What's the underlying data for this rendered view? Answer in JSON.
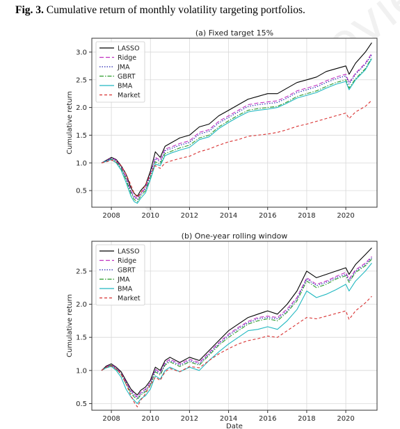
{
  "caption": {
    "label": "Fig. 3.",
    "text": "Cumulative return of monthly volatility targeting portfolios."
  },
  "watermark": "not peer reviewed",
  "chart_data": [
    {
      "type": "line",
      "title": "(a) Fixed target 15%",
      "xlabel": "",
      "ylabel": "Cumulative return",
      "xlim": [
        2007.0,
        2021.6
      ],
      "ylim": [
        0.2,
        3.25
      ],
      "xticks": [
        2008,
        2010,
        2012,
        2014,
        2016,
        2018,
        2020
      ],
      "yticks": [
        0.5,
        1.0,
        1.5,
        2.0,
        2.5,
        3.0
      ],
      "ytick_labels": [
        "0.5",
        "1.0",
        "1.5",
        "2.0",
        "2.5",
        "3.0"
      ],
      "grid": true,
      "legend_position": "top-left",
      "x": [
        2007.5,
        2007.75,
        2008.0,
        2008.25,
        2008.5,
        2008.75,
        2009.0,
        2009.17,
        2009.33,
        2009.5,
        2009.75,
        2010.0,
        2010.25,
        2010.5,
        2010.75,
        2011.0,
        2011.5,
        2012.0,
        2012.5,
        2013.0,
        2013.5,
        2014.0,
        2014.5,
        2015.0,
        2015.5,
        2016.0,
        2016.5,
        2017.0,
        2017.5,
        2018.0,
        2018.5,
        2019.0,
        2019.5,
        2020.0,
        2020.17,
        2020.5,
        2021.0,
        2021.33
      ],
      "series": [
        {
          "name": "LASSO",
          "color": "#000000",
          "dash": "",
          "values": [
            1.0,
            1.05,
            1.1,
            1.06,
            0.95,
            0.8,
            0.55,
            0.45,
            0.4,
            0.5,
            0.6,
            0.85,
            1.2,
            1.1,
            1.3,
            1.35,
            1.45,
            1.5,
            1.65,
            1.7,
            1.85,
            1.95,
            2.05,
            2.15,
            2.2,
            2.25,
            2.25,
            2.35,
            2.45,
            2.5,
            2.55,
            2.65,
            2.7,
            2.75,
            2.6,
            2.8,
            3.0,
            3.17
          ]
        },
        {
          "name": "Ridge",
          "color": "#c030c0",
          "dash": "6,3",
          "values": [
            1.0,
            1.04,
            1.09,
            1.05,
            0.93,
            0.75,
            0.5,
            0.4,
            0.36,
            0.45,
            0.55,
            0.8,
            1.1,
            1.05,
            1.25,
            1.28,
            1.35,
            1.4,
            1.55,
            1.6,
            1.75,
            1.85,
            1.95,
            2.05,
            2.08,
            2.1,
            2.12,
            2.2,
            2.3,
            2.35,
            2.4,
            2.48,
            2.55,
            2.6,
            2.45,
            2.62,
            2.8,
            2.98
          ]
        },
        {
          "name": "JMA",
          "color": "#2020b0",
          "dash": "1.5,2",
          "values": [
            1.0,
            1.04,
            1.08,
            1.04,
            0.92,
            0.73,
            0.48,
            0.38,
            0.34,
            0.43,
            0.53,
            0.78,
            1.08,
            1.02,
            1.22,
            1.25,
            1.32,
            1.37,
            1.52,
            1.57,
            1.72,
            1.82,
            1.92,
            2.02,
            2.05,
            2.07,
            2.09,
            2.17,
            2.27,
            2.32,
            2.37,
            2.45,
            2.52,
            2.57,
            2.42,
            2.6,
            2.78,
            2.95
          ]
        },
        {
          "name": "GBRT",
          "color": "#2a9a2a",
          "dash": "6,2,1.5,2",
          "values": [
            1.0,
            1.03,
            1.07,
            1.02,
            0.9,
            0.7,
            0.45,
            0.34,
            0.3,
            0.4,
            0.5,
            0.73,
            1.02,
            0.98,
            1.17,
            1.2,
            1.27,
            1.32,
            1.45,
            1.5,
            1.65,
            1.76,
            1.86,
            1.95,
            1.98,
            2.0,
            2.02,
            2.1,
            2.2,
            2.25,
            2.3,
            2.38,
            2.45,
            2.5,
            2.35,
            2.52,
            2.7,
            2.9
          ]
        },
        {
          "name": "BMA",
          "color": "#20b8c0",
          "dash": "",
          "values": [
            1.0,
            1.03,
            1.06,
            1.0,
            0.87,
            0.65,
            0.4,
            0.3,
            0.27,
            0.36,
            0.46,
            0.7,
            0.98,
            0.95,
            1.13,
            1.17,
            1.23,
            1.28,
            1.42,
            1.47,
            1.62,
            1.73,
            1.83,
            1.92,
            1.95,
            1.97,
            2.0,
            2.08,
            2.17,
            2.22,
            2.27,
            2.35,
            2.42,
            2.47,
            2.32,
            2.5,
            2.68,
            2.88
          ]
        },
        {
          "name": "Market",
          "color": "#d83030",
          "dash": "4,3",
          "values": [
            1.0,
            1.02,
            1.05,
            1.02,
            0.95,
            0.8,
            0.6,
            0.45,
            0.38,
            0.45,
            0.6,
            0.8,
            0.95,
            0.9,
            1.0,
            1.03,
            1.08,
            1.12,
            1.2,
            1.25,
            1.32,
            1.38,
            1.42,
            1.48,
            1.5,
            1.52,
            1.55,
            1.6,
            1.66,
            1.7,
            1.75,
            1.8,
            1.85,
            1.9,
            1.8,
            1.92,
            2.02,
            2.13
          ]
        }
      ]
    },
    {
      "type": "line",
      "title": "(b) One-year rolling window",
      "xlabel": "Date",
      "ylabel": "Cumulative return",
      "xlim": [
        2007.0,
        2021.6
      ],
      "ylim": [
        0.4,
        2.95
      ],
      "xticks": [
        2008,
        2010,
        2012,
        2014,
        2016,
        2018,
        2020
      ],
      "yticks": [
        0.5,
        1.0,
        1.5,
        2.0,
        2.5
      ],
      "ytick_labels": [
        "0.5",
        "1.0",
        "1.5",
        "2.0",
        "2.5"
      ],
      "grid": true,
      "legend_position": "top-left",
      "x": [
        2007.5,
        2007.75,
        2008.0,
        2008.25,
        2008.5,
        2008.75,
        2009.0,
        2009.17,
        2009.33,
        2009.5,
        2009.75,
        2010.0,
        2010.25,
        2010.5,
        2010.75,
        2011.0,
        2011.5,
        2012.0,
        2012.5,
        2013.0,
        2013.5,
        2014.0,
        2014.5,
        2015.0,
        2015.5,
        2016.0,
        2016.5,
        2017.0,
        2017.5,
        2018.0,
        2018.5,
        2019.0,
        2019.5,
        2020.0,
        2020.17,
        2020.5,
        2021.0,
        2021.33
      ],
      "series": [
        {
          "name": "LASSO",
          "color": "#000000",
          "dash": "",
          "values": [
            1.0,
            1.07,
            1.1,
            1.05,
            0.98,
            0.85,
            0.72,
            0.67,
            0.63,
            0.7,
            0.75,
            0.85,
            1.05,
            1.0,
            1.15,
            1.2,
            1.12,
            1.2,
            1.15,
            1.3,
            1.45,
            1.6,
            1.7,
            1.8,
            1.85,
            1.9,
            1.85,
            2.0,
            2.2,
            2.5,
            2.4,
            2.45,
            2.5,
            2.55,
            2.45,
            2.6,
            2.75,
            2.85
          ]
        },
        {
          "name": "Ridge",
          "color": "#c030c0",
          "dash": "6,3",
          "values": [
            1.0,
            1.06,
            1.09,
            1.04,
            0.96,
            0.83,
            0.7,
            0.65,
            0.6,
            0.67,
            0.72,
            0.82,
            1.02,
            0.97,
            1.12,
            1.17,
            1.1,
            1.17,
            1.12,
            1.27,
            1.42,
            1.55,
            1.65,
            1.74,
            1.8,
            1.82,
            1.8,
            1.93,
            2.1,
            2.4,
            2.3,
            2.35,
            2.42,
            2.48,
            2.38,
            2.52,
            2.62,
            2.72
          ]
        },
        {
          "name": "GBRT",
          "color": "#2020b0",
          "dash": "1.5,2",
          "values": [
            1.0,
            1.05,
            1.08,
            1.03,
            0.95,
            0.82,
            0.68,
            0.63,
            0.58,
            0.65,
            0.7,
            0.8,
            1.0,
            0.95,
            1.1,
            1.15,
            1.08,
            1.15,
            1.1,
            1.25,
            1.4,
            1.53,
            1.63,
            1.72,
            1.78,
            1.8,
            1.78,
            1.9,
            2.08,
            2.38,
            2.28,
            2.33,
            2.4,
            2.45,
            2.35,
            2.5,
            2.6,
            2.7
          ]
        },
        {
          "name": "JMA",
          "color": "#2a9a2a",
          "dash": "6,2,1.5,2",
          "values": [
            1.0,
            1.05,
            1.08,
            1.02,
            0.94,
            0.8,
            0.66,
            0.6,
            0.56,
            0.63,
            0.68,
            0.78,
            0.98,
            0.93,
            1.08,
            1.13,
            1.06,
            1.13,
            1.08,
            1.23,
            1.38,
            1.5,
            1.6,
            1.7,
            1.75,
            1.78,
            1.75,
            1.88,
            2.05,
            2.35,
            2.25,
            2.3,
            2.38,
            2.43,
            2.33,
            2.48,
            2.58,
            2.68
          ]
        },
        {
          "name": "BMA",
          "color": "#20b8c0",
          "dash": "",
          "values": [
            1.0,
            1.04,
            1.06,
            1.0,
            0.9,
            0.72,
            0.6,
            0.55,
            0.5,
            0.57,
            0.62,
            0.72,
            0.92,
            0.87,
            1.0,
            1.05,
            0.98,
            1.05,
            1.0,
            1.15,
            1.28,
            1.4,
            1.5,
            1.6,
            1.62,
            1.66,
            1.62,
            1.75,
            1.92,
            2.2,
            2.1,
            2.15,
            2.22,
            2.3,
            2.2,
            2.35,
            2.5,
            2.62
          ]
        },
        {
          "name": "Market",
          "color": "#d83030",
          "dash": "4,3",
          "values": [
            1.0,
            1.05,
            1.07,
            1.02,
            0.95,
            0.8,
            0.62,
            0.52,
            0.45,
            0.55,
            0.65,
            0.78,
            0.9,
            0.85,
            0.98,
            1.03,
            0.98,
            1.06,
            1.04,
            1.15,
            1.25,
            1.33,
            1.4,
            1.45,
            1.48,
            1.52,
            1.5,
            1.6,
            1.7,
            1.8,
            1.78,
            1.82,
            1.86,
            1.9,
            1.77,
            1.9,
            2.02,
            2.12
          ]
        }
      ]
    }
  ]
}
